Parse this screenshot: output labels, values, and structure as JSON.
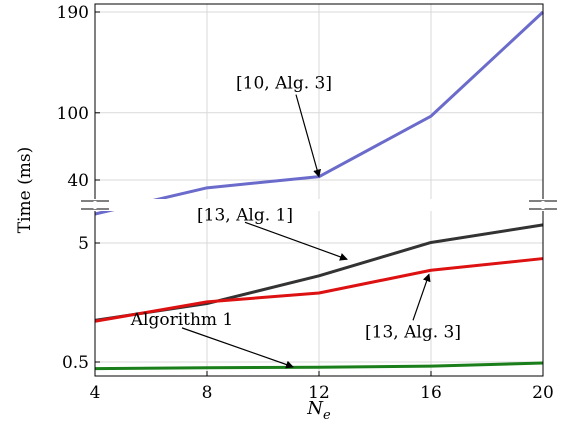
{
  "chart_data": {
    "type": "line",
    "title": "",
    "xlabel": "N",
    "xlabel_sub": "e",
    "ylabel": "Time (ms)",
    "x": [
      4,
      8,
      12,
      16,
      20
    ],
    "xticks": [
      "4",
      "8",
      "12",
      "16",
      "20"
    ],
    "xlim": [
      4,
      20
    ],
    "y_axis": "broken",
    "upper_panel": {
      "ylim": [
        30,
        190
      ],
      "ticks": [
        "40",
        "100",
        "190"
      ],
      "tick_values": [
        40,
        100,
        190
      ]
    },
    "lower_panel": {
      "ylim": [
        0.4,
        9
      ],
      "scale": "log",
      "ticks": [
        "5",
        "0.5"
      ],
      "tick_values": [
        5,
        0.5
      ]
    },
    "grid": true,
    "series": [
      {
        "name": "[10, Alg. 3]",
        "color": "#6b6bcc",
        "panel": "upper",
        "values": [
          26,
          33,
          43,
          97,
          190
        ]
      },
      {
        "name": "[13, Alg. 1]",
        "color": "#333333",
        "panel": "lower",
        "values": [
          1.12,
          1.55,
          2.65,
          5.05,
          7.1
        ]
      },
      {
        "name": "[13, Alg. 3]",
        "color": "#dd1111",
        "panel": "lower",
        "values": [
          1.1,
          1.6,
          1.9,
          2.95,
          3.7
        ]
      },
      {
        "name": "Algorithm 1",
        "color": "#1a7f1a",
        "panel": "lower",
        "values": [
          0.44,
          0.447,
          0.452,
          0.462,
          0.49
        ]
      }
    ],
    "annotations": [
      {
        "series": 0,
        "text": "[10, Alg. 3]",
        "at_x": 12
      },
      {
        "series": 1,
        "text": "[13, Alg. 1]",
        "at_x": 12
      },
      {
        "series": 2,
        "text": "[13, Alg. 3]",
        "at_x": 16
      },
      {
        "series": 3,
        "text": "Algorithm 1",
        "at_x": 12
      }
    ]
  }
}
